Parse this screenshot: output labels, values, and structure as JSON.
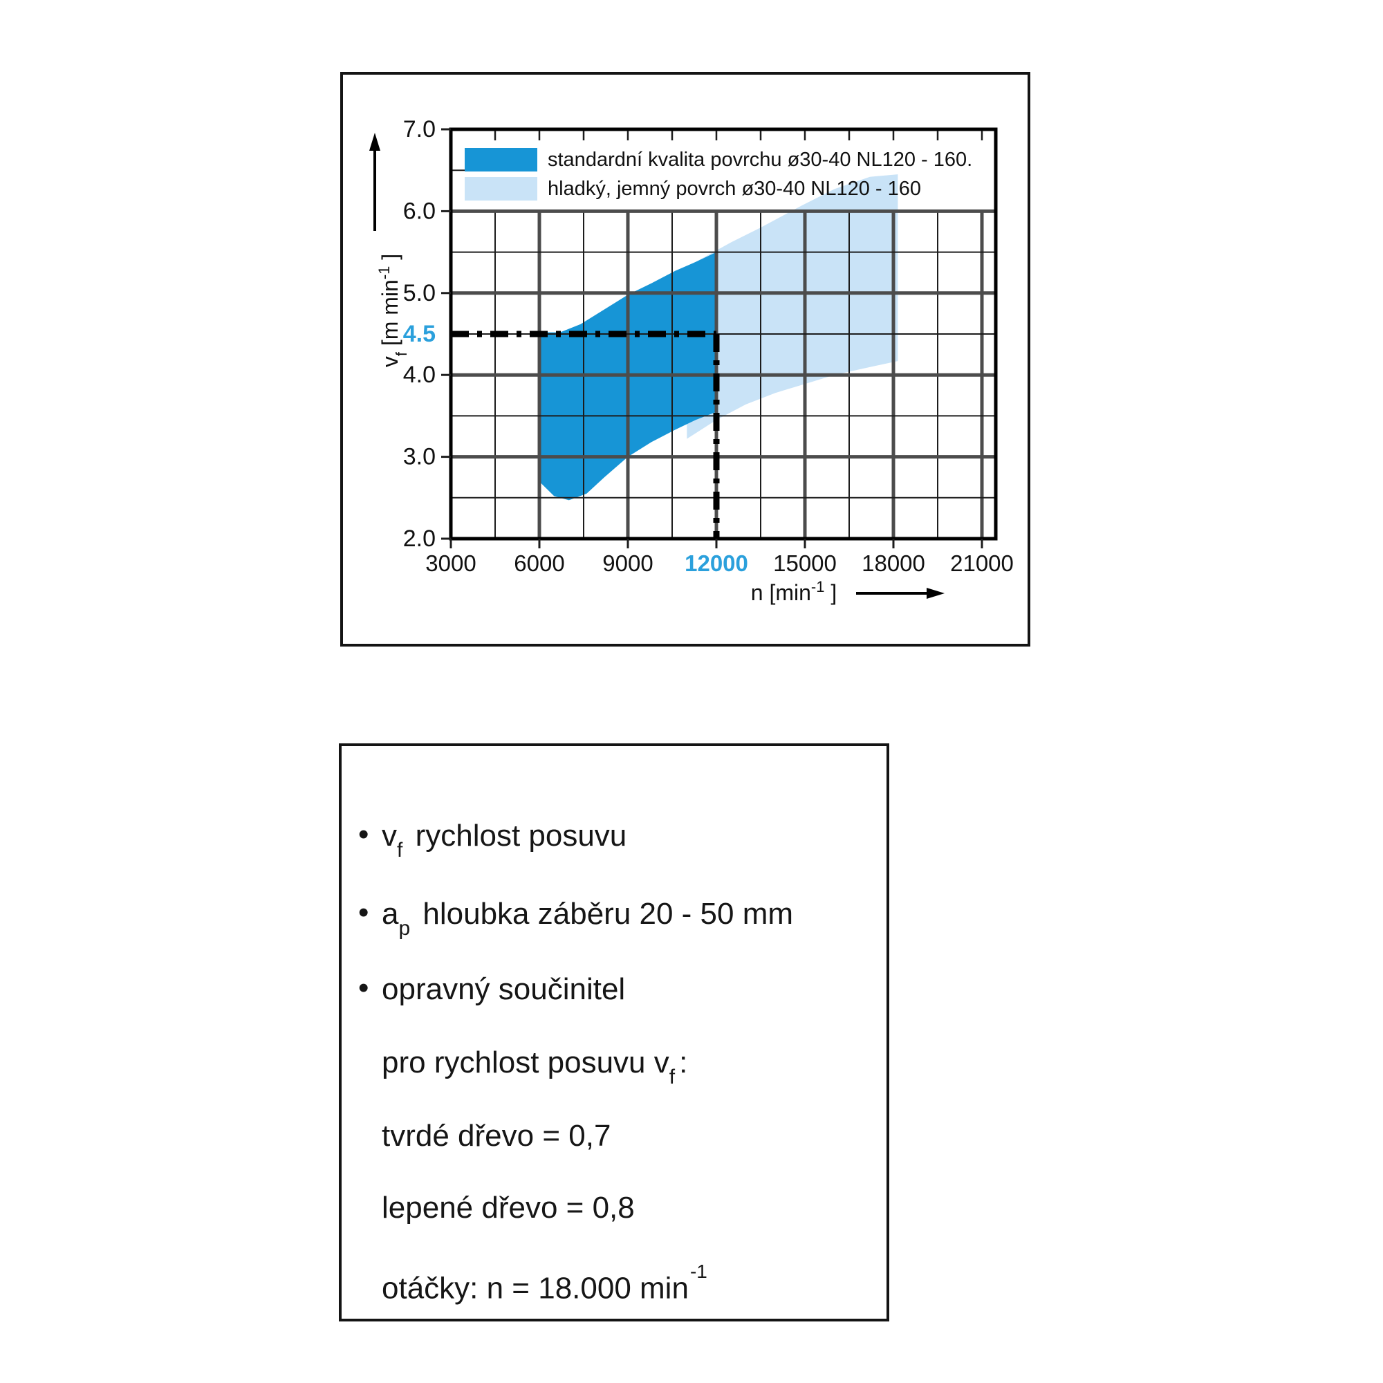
{
  "page": {
    "background": "#ffffff"
  },
  "colors": {
    "series_dark_blue": "#1795d6",
    "series_light_blue": "#c9e3f7",
    "highlight_blue": "#2ba0dc",
    "grid_minor": "#1c1c1c",
    "grid_major": "#4c4c4c",
    "frame": "#000000",
    "dash_line": "#000000",
    "text": "#111111"
  },
  "chart_data": {
    "type": "area",
    "title": "",
    "xlabel_unit": {
      "prefix": "n  [min",
      "sup": "-1",
      "suffix": " ]"
    },
    "ylabel_unit": {
      "prefix": "v",
      "sub": "f",
      "mid": "  [m min",
      "sup": "-1",
      "suffix": " ]"
    },
    "xlim": [
      3000,
      21470
    ],
    "ylim": [
      2.0,
      7.0
    ],
    "x_ticks": [
      {
        "value": 3000,
        "label": "3000",
        "highlight": false
      },
      {
        "value": 6000,
        "label": "6000",
        "highlight": false
      },
      {
        "value": 9000,
        "label": "9000",
        "highlight": false
      },
      {
        "value": 12000,
        "label": "12000",
        "highlight": true
      },
      {
        "value": 15000,
        "label": "15000",
        "highlight": false
      },
      {
        "value": 18000,
        "label": "18000",
        "highlight": false
      },
      {
        "value": 21000,
        "label": "21000",
        "highlight": false
      }
    ],
    "y_ticks": [
      {
        "value": 2.0,
        "label": "2.0",
        "highlight": false
      },
      {
        "value": 3.0,
        "label": "3.0",
        "highlight": false
      },
      {
        "value": 4.0,
        "label": "4.0",
        "highlight": false
      },
      {
        "value": 4.5,
        "label": "4.5",
        "highlight": true
      },
      {
        "value": 5.0,
        "label": "5.0",
        "highlight": false
      },
      {
        "value": 6.0,
        "label": "6.0",
        "highlight": false
      },
      {
        "value": 7.0,
        "label": "7.0",
        "highlight": false
      }
    ],
    "grid": {
      "x_minor_step": 1500,
      "y_minor_step": 0.5,
      "x_major_step": 3000,
      "y_major_step": 1.0,
      "grid_on": true
    },
    "legend_position": "top-left-inside",
    "series": [
      {
        "name": "standardní kvalita povrchu ø30-40 NL120 - 160.",
        "color": "#1795d6",
        "kind": "band",
        "points": [
          [
            6050,
            4.52
          ],
          [
            6700,
            4.52
          ],
          [
            7400,
            4.62
          ],
          [
            8200,
            4.8
          ],
          [
            9000,
            4.98
          ],
          [
            9800,
            5.12
          ],
          [
            10600,
            5.27
          ],
          [
            11300,
            5.38
          ],
          [
            12000,
            5.5
          ],
          [
            12000,
            3.55
          ],
          [
            11300,
            3.45
          ],
          [
            10600,
            3.33
          ],
          [
            9800,
            3.18
          ],
          [
            9000,
            3.0
          ],
          [
            8200,
            2.75
          ],
          [
            7600,
            2.55
          ],
          [
            7000,
            2.47
          ],
          [
            6500,
            2.52
          ],
          [
            6050,
            2.68
          ]
        ]
      },
      {
        "name": "hladký, jemný povrch ø30-40 NL120 - 160",
        "color": "#c9e3f7",
        "kind": "band",
        "points": [
          [
            11000,
            3.22
          ],
          [
            12000,
            3.45
          ],
          [
            13000,
            3.64
          ],
          [
            14000,
            3.78
          ],
          [
            15000,
            3.89
          ],
          [
            16000,
            4.0
          ],
          [
            17000,
            4.08
          ],
          [
            18150,
            4.17
          ],
          [
            18150,
            6.45
          ],
          [
            17200,
            6.42
          ],
          [
            16000,
            6.27
          ],
          [
            14900,
            6.07
          ],
          [
            13500,
            5.8
          ],
          [
            12500,
            5.62
          ],
          [
            11700,
            5.46
          ],
          [
            11000,
            5.32
          ]
        ]
      }
    ],
    "annotation": {
      "type": "dash-dot-crosshair",
      "x": 12000,
      "y": 4.5,
      "x_label": "12000",
      "y_label": "4.5",
      "color": "#000000"
    }
  },
  "info_panel": {
    "lines": [
      {
        "bullet": true,
        "segments": [
          {
            "t": "v"
          },
          {
            "sub": "f"
          },
          {
            "t": "  rychlost posuvu"
          }
        ]
      },
      {
        "bullet": true,
        "segments": [
          {
            "t": "a"
          },
          {
            "sub": "p"
          },
          {
            "t": "  hloubka záběru 20 - 50 mm"
          }
        ]
      },
      {
        "bullet": true,
        "segments": [
          {
            "t": "opravný součinitel"
          }
        ]
      },
      {
        "bullet": false,
        "segments": [
          {
            "t": "pro rychlost posuvu v"
          },
          {
            "sub": "f"
          },
          {
            "t": ":"
          }
        ]
      },
      {
        "bullet": false,
        "segments": [
          {
            "t": "tvrdé dřevo = 0,7"
          }
        ]
      },
      {
        "bullet": false,
        "segments": [
          {
            "t": "lepené dřevo = 0,8"
          }
        ]
      },
      {
        "bullet": false,
        "segments": [
          {
            "t": "otáčky: n = 18.000 min"
          },
          {
            "sup": "-1"
          }
        ]
      }
    ]
  }
}
